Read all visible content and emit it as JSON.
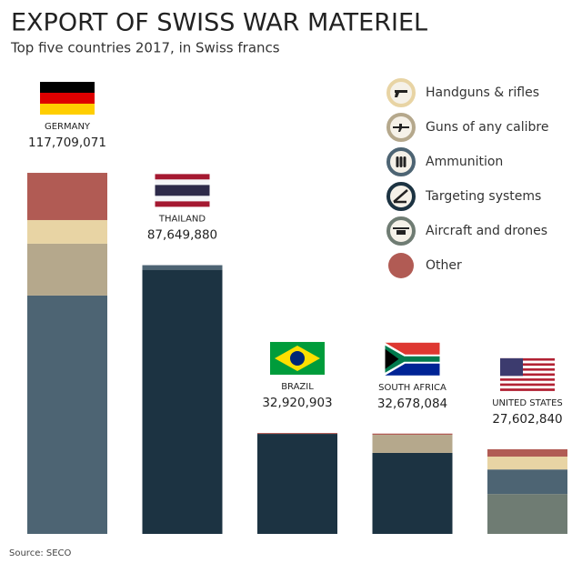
{
  "chart_data": {
    "type": "bar",
    "stacked": true,
    "title": "EXPORT OF SWISS WAR MATERIEL",
    "subtitle": "Top five countries 2017, in Swiss francs",
    "source": "Source: SECO",
    "categories": [
      "GERMANY",
      "THAILAND",
      "BRAZIL",
      "SOUTH AFRICA",
      "UNITED STATES"
    ],
    "totals": [
      117709071,
      87649880,
      32920903,
      32678084,
      27602840
    ],
    "total_labels": [
      "117,709,071",
      "87,649,880",
      "32,920,903",
      "32,678,084",
      "27,602,840"
    ],
    "series": [
      {
        "name": "Handguns & rifles",
        "color": "#e8d4a4",
        "values": [
          7700000,
          0,
          0,
          0,
          4200000
        ]
      },
      {
        "name": "Guns of any calibre",
        "color": "#b5a88c",
        "values": [
          16900000,
          0,
          0,
          5900000,
          0
        ]
      },
      {
        "name": "Ammunition",
        "color": "#4d6473",
        "values": [
          77700000,
          1500000,
          0,
          0,
          8000000
        ]
      },
      {
        "name": "Targeting systems",
        "color": "#1c3342",
        "values": [
          0,
          86100000,
          32600000,
          26400000,
          0
        ]
      },
      {
        "name": "Aircraft and drones",
        "color": "#6f7c73",
        "values": [
          0,
          0,
          0,
          0,
          13000000
        ]
      },
      {
        "name": "Other",
        "color": "#b15b54",
        "values": [
          15400000,
          0,
          300000,
          400000,
          2400000
        ]
      }
    ]
  }
}
